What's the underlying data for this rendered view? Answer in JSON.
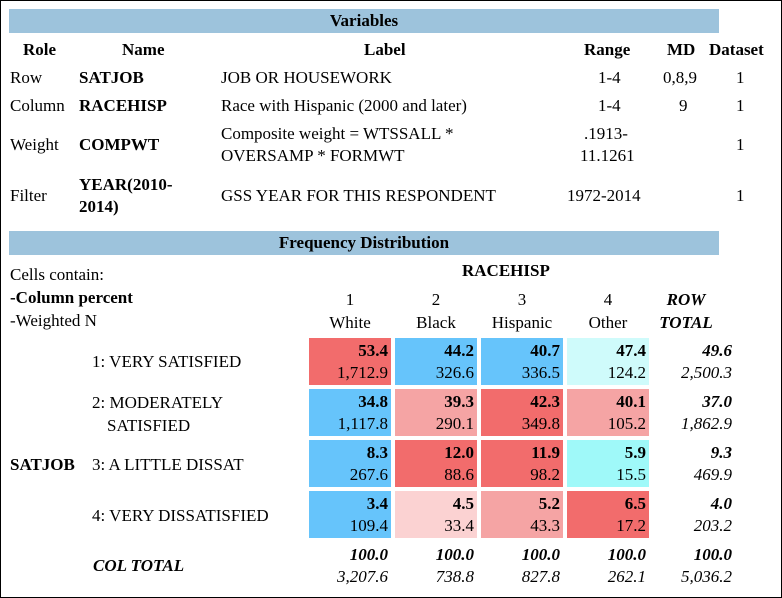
{
  "variables": {
    "title": "Variables",
    "headers": {
      "role": "Role",
      "name": "Name",
      "label": "Label",
      "range": "Range",
      "md": "MD",
      "dataset": "Dataset"
    },
    "rows": [
      {
        "role": "Row",
        "name": "SATJOB",
        "label": "JOB OR HOUSEWORK",
        "range": "1-4",
        "md": "0,8,9",
        "dataset": "1"
      },
      {
        "role": "Column",
        "name": "RACEHISP",
        "label": "Race with Hispanic (2000 and later)",
        "range": "1-4",
        "md": "9",
        "dataset": "1"
      },
      {
        "role": "Weight",
        "name": "COMPWT",
        "label_line1": "Composite weight = WTSSALL *",
        "label_line2": "OVERSAMP * FORMWT",
        "range_line1": ".1913-",
        "range_line2": "11.1261",
        "md": "",
        "dataset": "1"
      },
      {
        "role": "Filter",
        "name_line1": "YEAR(2010-",
        "name_line2": "2014)",
        "label": "GSS YEAR FOR THIS RESPONDENT",
        "range": "1972-2014",
        "md": "",
        "dataset": "1"
      }
    ]
  },
  "frequency": {
    "title": "Frequency Distribution",
    "cells_contain": "Cells contain:",
    "column_percent": "-Column percent",
    "weighted_n": "-Weighted N",
    "column_variable": "RACEHISP",
    "row_variable": "SATJOB",
    "columns": [
      {
        "code": "1",
        "label": "White"
      },
      {
        "code": "2",
        "label": "Black"
      },
      {
        "code": "3",
        "label": "Hispanic"
      },
      {
        "code": "4",
        "label": "Other"
      }
    ],
    "row_total_line1": "ROW",
    "row_total_line2": "TOTAL",
    "rows": [
      {
        "label_line1": "1: VERY SATISFIED",
        "label_line2": "",
        "cells": [
          {
            "pct": "53.4",
            "n": "1,712.9",
            "color": "#f26c6c"
          },
          {
            "pct": "44.2",
            "n": "326.6",
            "color": "#66c4fb"
          },
          {
            "pct": "40.7",
            "n": "336.5",
            "color": "#66c4fb"
          },
          {
            "pct": "47.4",
            "n": "124.2",
            "color": "#cffbfb"
          }
        ],
        "total": {
          "pct": "49.6",
          "n": "2,500.3"
        }
      },
      {
        "label_line1": "2: MODERATELY",
        "label_line2": "SATISFIED",
        "cells": [
          {
            "pct": "34.8",
            "n": "1,117.8",
            "color": "#66c4fb"
          },
          {
            "pct": "39.3",
            "n": "290.1",
            "color": "#f5a4a4"
          },
          {
            "pct": "42.3",
            "n": "349.8",
            "color": "#f26c6c"
          },
          {
            "pct": "40.1",
            "n": "105.2",
            "color": "#f5a4a4"
          }
        ],
        "total": {
          "pct": "37.0",
          "n": "1,862.9"
        }
      },
      {
        "label_line1": "3: A LITTLE DISSAT",
        "label_line2": "",
        "cells": [
          {
            "pct": "8.3",
            "n": "267.6",
            "color": "#66c4fb"
          },
          {
            "pct": "12.0",
            "n": "88.6",
            "color": "#f26c6c"
          },
          {
            "pct": "11.9",
            "n": "98.2",
            "color": "#f26c6c"
          },
          {
            "pct": "5.9",
            "n": "15.5",
            "color": "#9ff9f9"
          }
        ],
        "total": {
          "pct": "9.3",
          "n": "469.9"
        }
      },
      {
        "label_line1": "4: VERY DISSATISFIED",
        "label_line2": "",
        "cells": [
          {
            "pct": "3.4",
            "n": "109.4",
            "color": "#66c4fb"
          },
          {
            "pct": "4.5",
            "n": "33.4",
            "color": "#fbd2d2"
          },
          {
            "pct": "5.2",
            "n": "43.3",
            "color": "#f5a4a4"
          },
          {
            "pct": "6.5",
            "n": "17.2",
            "color": "#f26c6c"
          }
        ],
        "total": {
          "pct": "4.0",
          "n": "203.2"
        }
      }
    ],
    "col_total_label": "COL TOTAL",
    "col_totals": [
      {
        "pct": "100.0",
        "n": "3,207.6"
      },
      {
        "pct": "100.0",
        "n": "738.8"
      },
      {
        "pct": "100.0",
        "n": "827.8"
      },
      {
        "pct": "100.0",
        "n": "262.1"
      }
    ],
    "grand_total": {
      "pct": "100.0",
      "n": "5,036.2"
    }
  }
}
